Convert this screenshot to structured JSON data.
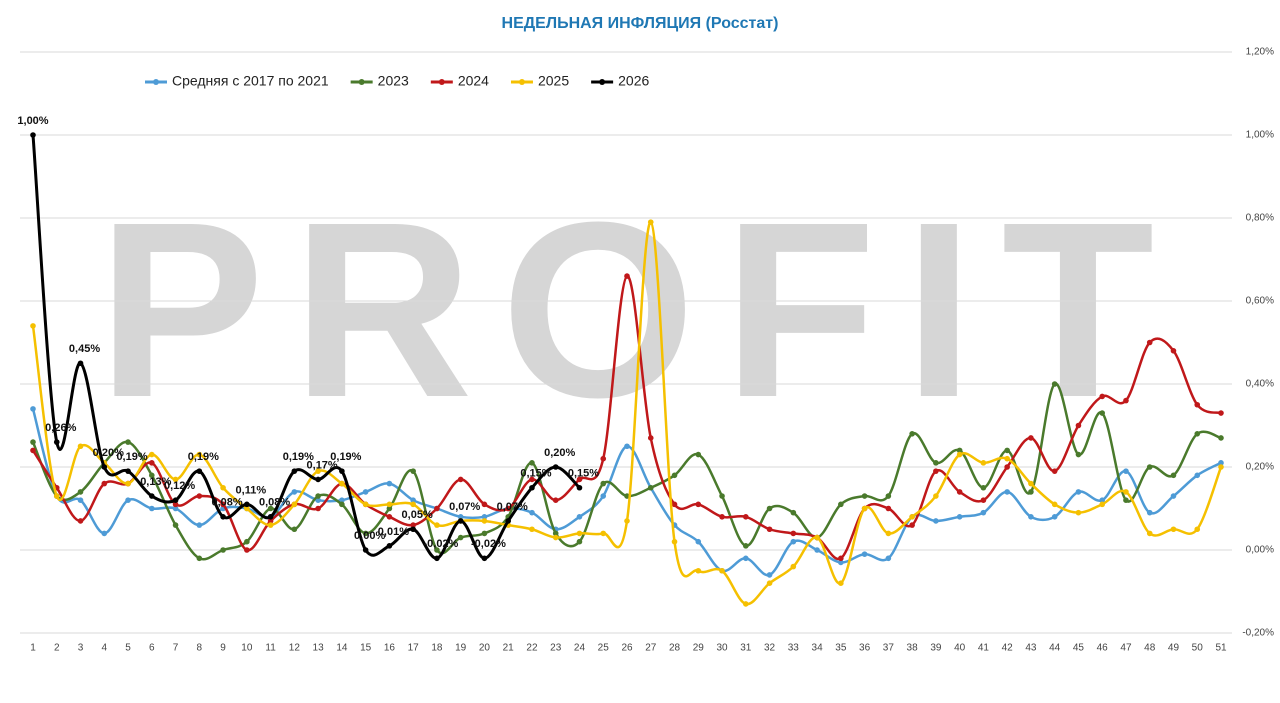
{
  "chart_data": {
    "type": "line",
    "title": "НЕДЕЛЬНАЯ ИНФЛЯЦИЯ (Росстат)",
    "watermark": "PROFIT",
    "categories": [
      "1",
      "2",
      "3",
      "4",
      "5",
      "6",
      "7",
      "8",
      "9",
      "10",
      "11",
      "12",
      "13",
      "14",
      "15",
      "16",
      "17",
      "18",
      "19",
      "20",
      "21",
      "22",
      "23",
      "24",
      "25",
      "26",
      "27",
      "28",
      "29",
      "30",
      "31",
      "32",
      "33",
      "34",
      "35",
      "36",
      "37",
      "38",
      "39",
      "40",
      "41",
      "42",
      "43",
      "44",
      "45",
      "46",
      "47",
      "48",
      "49",
      "50",
      "51"
    ],
    "ylim": [
      -0.2,
      1.2
    ],
    "yticks": [
      {
        "value": -0.2,
        "label": "-0,20%"
      },
      {
        "value": 0,
        "label": "0,00%"
      },
      {
        "value": 0.2,
        "label": "0,20%"
      },
      {
        "value": 0.4,
        "label": "0,40%"
      },
      {
        "value": 0.6,
        "label": "0,60%"
      },
      {
        "value": 0.8,
        "label": "0,80%"
      },
      {
        "value": 1.0,
        "label": "1,00%"
      },
      {
        "value": 1.2,
        "label": "1,20%"
      }
    ],
    "grid": true,
    "legend": "top",
    "series": [
      {
        "name": "Средняя с 2017 по 2021",
        "color": "#4e9bd6",
        "values": [
          0.34,
          0.13,
          0.12,
          0.04,
          0.12,
          0.1,
          0.1,
          0.06,
          0.1,
          0.1,
          0.08,
          0.14,
          0.12,
          0.12,
          0.14,
          0.16,
          0.12,
          0.1,
          0.08,
          0.08,
          0.1,
          0.09,
          0.05,
          0.08,
          0.13,
          0.25,
          0.15,
          0.06,
          0.02,
          -0.05,
          -0.02,
          -0.06,
          0.02,
          0.0,
          -0.03,
          -0.01,
          -0.02,
          0.08,
          0.07,
          0.08,
          0.09,
          0.14,
          0.08,
          0.08,
          0.14,
          0.12,
          0.19,
          0.09,
          0.13,
          0.18,
          0.21
        ]
      },
      {
        "name": "2023",
        "color": "#4a7a2c",
        "values": [
          0.26,
          0.13,
          0.14,
          0.21,
          0.26,
          0.18,
          0.06,
          -0.02,
          0.0,
          0.02,
          0.1,
          0.05,
          0.13,
          0.11,
          0.04,
          0.1,
          0.19,
          0.0,
          0.03,
          0.04,
          0.08,
          0.21,
          0.04,
          0.02,
          0.16,
          0.13,
          0.15,
          0.18,
          0.23,
          0.13,
          0.01,
          0.1,
          0.09,
          0.03,
          0.11,
          0.13,
          0.13,
          0.28,
          0.21,
          0.24,
          0.15,
          0.24,
          0.14,
          0.4,
          0.23,
          0.33,
          0.12,
          0.2,
          0.18,
          0.28,
          0.27
        ]
      },
      {
        "name": "2024",
        "color": "#c0181a",
        "values": [
          0.24,
          0.15,
          0.07,
          0.16,
          0.16,
          0.21,
          0.11,
          0.13,
          0.11,
          0.0,
          0.07,
          0.11,
          0.1,
          0.16,
          0.11,
          0.08,
          0.06,
          0.1,
          0.17,
          0.11,
          0.1,
          0.17,
          0.12,
          0.17,
          0.22,
          0.66,
          0.27,
          0.11,
          0.11,
          0.08,
          0.08,
          0.05,
          0.04,
          0.03,
          -0.02,
          0.1,
          0.1,
          0.06,
          0.19,
          0.14,
          0.12,
          0.2,
          0.27,
          0.19,
          0.3,
          0.37,
          0.36,
          0.5,
          0.48,
          0.35,
          0.33
        ]
      },
      {
        "name": "2025",
        "color": "#f5c000",
        "values": [
          0.54,
          0.13,
          0.25,
          0.21,
          0.16,
          0.23,
          0.17,
          0.23,
          0.15,
          0.1,
          0.06,
          0.11,
          0.19,
          0.16,
          0.11,
          0.11,
          0.11,
          0.06,
          0.07,
          0.07,
          0.06,
          0.05,
          0.03,
          0.04,
          0.04,
          0.07,
          0.79,
          0.02,
          -0.05,
          -0.05,
          -0.13,
          -0.08,
          -0.04,
          0.03,
          -0.08,
          0.1,
          0.04,
          0.08,
          0.13,
          0.23,
          0.21,
          0.22,
          0.16,
          0.11,
          0.09,
          0.11,
          0.14,
          0.04,
          0.05,
          0.05,
          0.2
        ]
      },
      {
        "name": "2026",
        "color": "#000000",
        "values": [
          1.0,
          0.26,
          0.45,
          0.2,
          0.19,
          0.13,
          0.12,
          0.19,
          0.08,
          0.11,
          0.08,
          0.19,
          0.17,
          0.19,
          0.0,
          0.01,
          0.05,
          -0.02,
          0.07,
          -0.02,
          0.07,
          0.15,
          0.2,
          0.15,
          null,
          null,
          null,
          null,
          null,
          null,
          null,
          null,
          null,
          null,
          null,
          null,
          null,
          null,
          null,
          null,
          null,
          null,
          null,
          null,
          null,
          null,
          null,
          null,
          null,
          null,
          null
        ],
        "value_labels": [
          "1,00%",
          "0,26%",
          "0,45%",
          "0,20%",
          "0,19%",
          "0,13%",
          "0,12%",
          "0,19%",
          "0,08%",
          "0,11%",
          "0,08%",
          "0,19%",
          "0,17%",
          "0,19%",
          "0,00%",
          "0,01%",
          "0,05%",
          "-0,02%",
          "0,07%",
          "-0,02%",
          "0,07%",
          "0,15%",
          "0,20%",
          "0,15%",
          null,
          null,
          null,
          null,
          null,
          null,
          null,
          null,
          null,
          null,
          null,
          null,
          null,
          null,
          null,
          null,
          null,
          null,
          null,
          null,
          null,
          null,
          null,
          null,
          null,
          null,
          null
        ]
      }
    ]
  }
}
